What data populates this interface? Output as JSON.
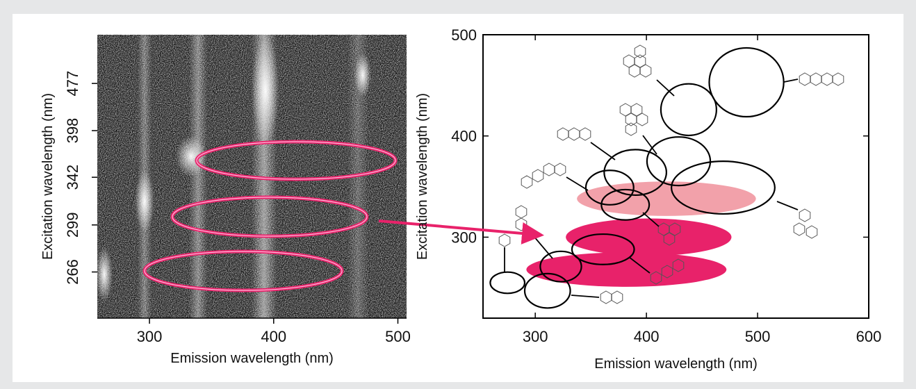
{
  "chart_data": [
    {
      "type": "image",
      "xlabel": "Emission wavelength (nm)",
      "ylabel": "Excitation wavelength (nm)",
      "xlim": [
        258,
        507
      ],
      "xticks": [
        300,
        400,
        500
      ],
      "ylim": [
        240,
        600
      ],
      "yticks": [
        266,
        299,
        342,
        398,
        477
      ],
      "yscale": "reciprocal"
    },
    {
      "type": "ellipse",
      "xlabel": "Emission wavelength (nm)",
      "ylabel": "Excitation wavelength (nm)",
      "xlim": [
        253,
        600
      ],
      "xticks": [
        300,
        400,
        500,
        600
      ],
      "ylim": [
        220,
        500
      ],
      "yticks": [
        300,
        400,
        500
      ],
      "series": [
        {
          "color": "#f2a1aa",
          "filled": true,
          "ellipses": [
            {
              "x": 418,
              "y": 338,
              "width": 161,
              "height": 34
            }
          ]
        },
        {
          "color": "#e8226a",
          "filled": true,
          "ellipses": [
            {
              "x": 402,
              "y": 300,
              "width": 149,
              "height": 37
            },
            {
              "x": 382,
              "y": 268,
              "width": 180,
              "height": 34
            }
          ]
        },
        {
          "color": "#000000",
          "filled": false,
          "ellipses": [
            {
              "x": 275,
              "y": 255,
              "width": 31,
              "height": 21
            },
            {
              "x": 311,
              "y": 247,
              "width": 41,
              "height": 34
            },
            {
              "x": 323,
              "y": 271,
              "width": 37,
              "height": 30
            },
            {
              "x": 361,
              "y": 288,
              "width": 56,
              "height": 30
            },
            {
              "x": 367,
              "y": 349,
              "width": 43,
              "height": 34
            },
            {
              "x": 381,
              "y": 332,
              "width": 43,
              "height": 30
            },
            {
              "x": 390,
              "y": 364,
              "width": 56,
              "height": 45
            },
            {
              "x": 429,
              "y": 375,
              "width": 57,
              "height": 48
            },
            {
              "x": 469,
              "y": 349,
              "width": 93,
              "height": 52
            },
            {
              "x": 438,
              "y": 426,
              "width": 50,
              "height": 51
            },
            {
              "x": 490,
              "y": 453,
              "width": 67,
              "height": 68
            }
          ]
        }
      ]
    }
  ]
}
